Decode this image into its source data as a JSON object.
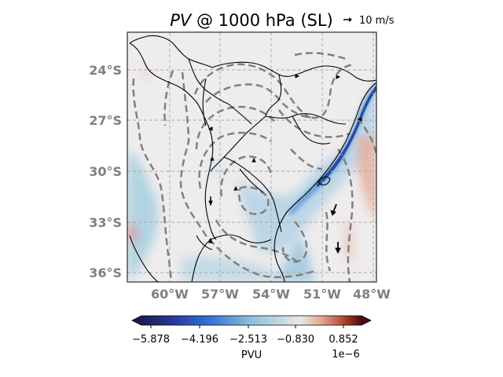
{
  "title": {
    "variable": "PV",
    "rest": " @ 1000 hPa (SL)"
  },
  "quiver_key": {
    "label": "10 m/s"
  },
  "map": {
    "lat_labels": [
      "24°S",
      "27°S",
      "30°S",
      "33°S",
      "36°S"
    ],
    "lon_labels": [
      "60°W",
      "57°W",
      "54°W",
      "51°W",
      "48°W"
    ],
    "gridlines": true
  },
  "colorbar": {
    "ticks": [
      "−5.878",
      "−4.196",
      "−2.513",
      "−0.830",
      "0.852"
    ],
    "unit_label": "PVU",
    "exponent": "1e−6",
    "colormap": [
      "#1a1e4d",
      "#2a3a9e",
      "#2f6fd1",
      "#8fbfdb",
      "#e8e8e8",
      "#e3a58f",
      "#b0442d",
      "#4a0a12"
    ]
  }
}
